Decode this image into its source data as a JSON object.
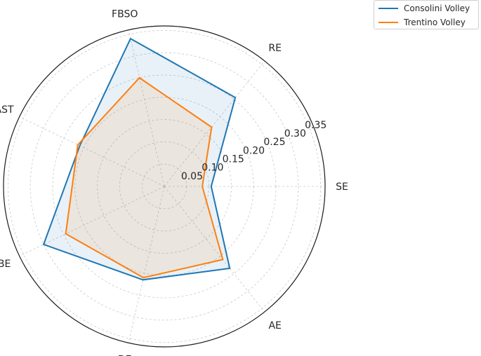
{
  "chart_data": {
    "type": "radar",
    "axes": [
      "SE",
      "RE",
      "FBSO",
      "AST",
      "BE",
      "DE",
      "AE"
    ],
    "r_ticks": [
      0.05,
      0.1,
      0.15,
      0.2,
      0.25,
      0.3,
      0.35
    ],
    "r_tick_labels": [
      "0.05",
      "0.10",
      "0.15",
      "0.20",
      "0.25",
      "0.30",
      "0.35"
    ],
    "r_max": 0.36,
    "grid": true,
    "legend_position": "top-right",
    "series": [
      {
        "name": "Consolini Volley",
        "color": "#1f77b4",
        "values": [
          0.105,
          0.255,
          0.34,
          0.21,
          0.3,
          0.215,
          0.235
        ]
      },
      {
        "name": "Trentino Volley",
        "color": "#ff7f0e",
        "values": [
          0.085,
          0.17,
          0.25,
          0.215,
          0.245,
          0.21,
          0.21
        ]
      }
    ]
  }
}
